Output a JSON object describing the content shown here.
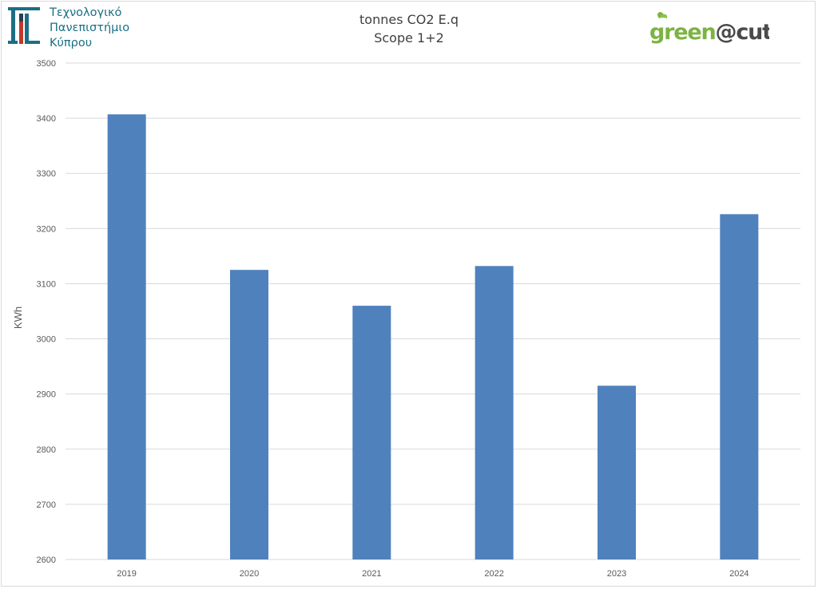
{
  "header": {
    "university_lines": [
      "Τεχνολογικό",
      "Πανεπιστήμιο",
      "Κύπρου"
    ],
    "green_logo": {
      "part1": "green",
      "at": "@",
      "part2": "cut"
    }
  },
  "colors": {
    "bar": "#4f81bd",
    "grid": "#d9d9d9",
    "university_teal": "#1a6f84",
    "logo_green": "#7cb342",
    "logo_dark": "#4a4a4a"
  },
  "chart_data": {
    "type": "bar",
    "title": "tonnes CO2 E.q",
    "subtitle": "Scope 1+2",
    "xlabel": "",
    "ylabel": "KWh",
    "categories": [
      "2019",
      "2020",
      "2021",
      "2022",
      "2023",
      "2024"
    ],
    "values": [
      3407,
      3125,
      3060,
      3132,
      2915,
      3226
    ],
    "ylim": [
      2600,
      3500
    ],
    "yticks": [
      2600,
      2700,
      2800,
      2900,
      3000,
      3100,
      3200,
      3300,
      3400,
      3500
    ],
    "grid": true,
    "legend": "none"
  }
}
